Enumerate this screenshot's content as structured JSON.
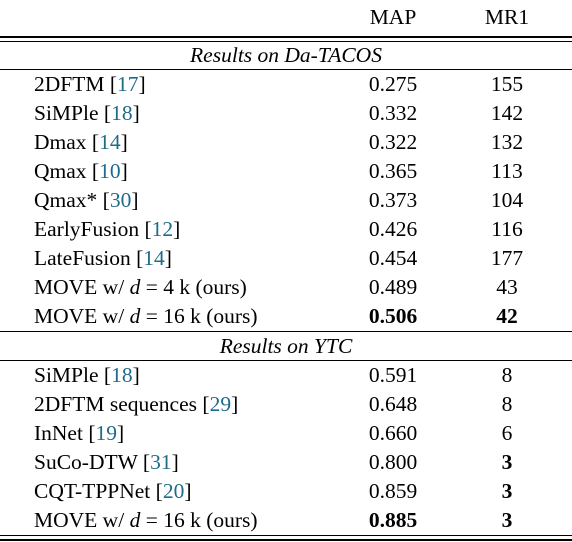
{
  "table": {
    "header": {
      "method": "",
      "map": "MAP",
      "mr1": "MR1"
    },
    "sections": [
      {
        "title": "Results on Da-TACOS",
        "rows": [
          {
            "name": "2DFTM",
            "ref": "17",
            "map": "0.275",
            "mr1": "155"
          },
          {
            "name": "SiMPle",
            "ref": "18",
            "map": "0.332",
            "mr1": "142"
          },
          {
            "name": "Dmax",
            "ref": "14",
            "map": "0.322",
            "mr1": "132"
          },
          {
            "name": "Qmax",
            "ref": "10",
            "map": "0.365",
            "mr1": "113"
          },
          {
            "name": "Qmax*",
            "ref": "30",
            "map": "0.373",
            "mr1": "104"
          },
          {
            "name": "EarlyFusion",
            "ref": "12",
            "map": "0.426",
            "mr1": "116"
          },
          {
            "name": "LateFusion",
            "ref": "14",
            "map": "0.454",
            "mr1": "177"
          },
          {
            "name_pre": "MOVE w/ ",
            "var": "d",
            "name_post": " = 4 k (ours)",
            "map": "0.489",
            "mr1": "43"
          },
          {
            "name_pre": "MOVE w/ ",
            "var": "d",
            "name_post": " = 16 k (ours)",
            "map": "0.506",
            "mr1": "42"
          }
        ]
      },
      {
        "title": "Results on YTC",
        "rows": [
          {
            "name": "SiMPle",
            "ref": "18",
            "map": "0.591",
            "mr1": "8"
          },
          {
            "name": "2DFTM sequences",
            "ref": "29",
            "map": "0.648",
            "mr1": "8"
          },
          {
            "name": "InNet",
            "ref": "19",
            "map": "0.660",
            "mr1": "6"
          },
          {
            "name": "SuCo-DTW",
            "ref": "31",
            "map": "0.800",
            "mr1": "3"
          },
          {
            "name": "CQT-TPPNet",
            "ref": "20",
            "map": "0.859",
            "mr1": "3"
          },
          {
            "name_pre": "MOVE w/ ",
            "var": "d",
            "name_post": " = 16 k (ours)",
            "map": "0.885",
            "mr1": "3"
          }
        ]
      }
    ]
  }
}
